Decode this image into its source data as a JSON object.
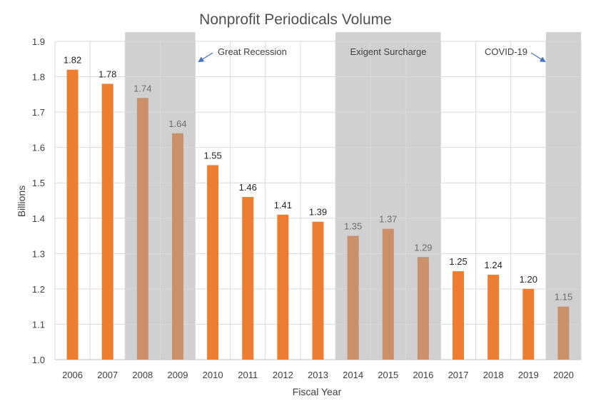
{
  "chart_data": {
    "type": "bar",
    "title": "Nonprofit Periodicals Volume",
    "xlabel": "Fiscal Year",
    "ylabel": "Billions",
    "ylim": [
      1.0,
      1.9
    ],
    "yticks": [
      "1.0",
      "1.1",
      "1.2",
      "1.3",
      "1.4",
      "1.5",
      "1.6",
      "1.7",
      "1.8",
      "1.9"
    ],
    "grid": true,
    "categories": [
      "2006",
      "2007",
      "2008",
      "2009",
      "2010",
      "2011",
      "2012",
      "2013",
      "2014",
      "2015",
      "2016",
      "2017",
      "2018",
      "2019",
      "2020"
    ],
    "values": [
      1.82,
      1.78,
      1.74,
      1.64,
      1.55,
      1.46,
      1.41,
      1.39,
      1.35,
      1.37,
      1.29,
      1.25,
      1.24,
      1.2,
      1.15
    ],
    "data_labels": [
      "1.82",
      "1.78",
      "1.74",
      "1.64",
      "1.55",
      "1.46",
      "1.41",
      "1.39",
      "1.35",
      "1.37",
      "1.29",
      "1.25",
      "1.24",
      "1.20",
      "1.15"
    ],
    "colors": {
      "bar_normal": "#ED7D31",
      "bar_shaded": "#C9906A",
      "label_normal": "#262626",
      "label_shaded": "#6E6E6E",
      "shade": "#D0D0D0",
      "grid": "#D9D9D9",
      "arrow": "#4472C4"
    },
    "shaded_periods": [
      {
        "label": "Great Recession",
        "from": "2008",
        "to": "2009"
      },
      {
        "label": "Exigent Surcharge",
        "from": "2014",
        "to": "2016"
      },
      {
        "label": "COVID-19",
        "from": "2020",
        "to": "2020"
      }
    ]
  }
}
